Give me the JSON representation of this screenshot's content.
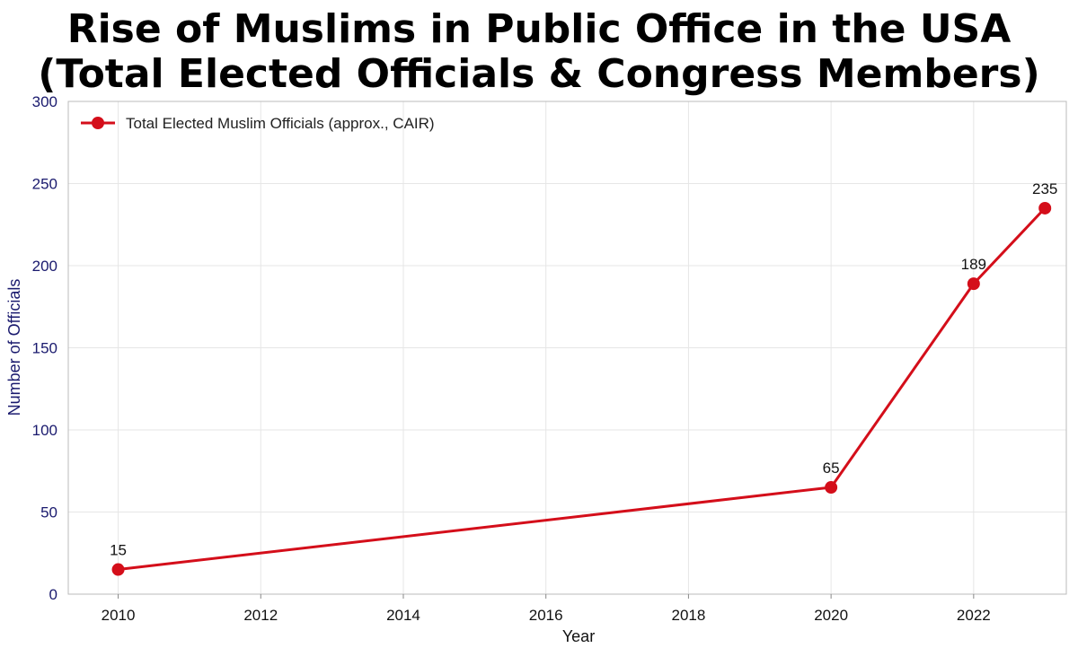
{
  "title_line1": "Rise of Muslims in Public Office in the USA",
  "title_line2": "(Total Elected Officials & Congress Members)",
  "colors": {
    "series": "#d40e1a",
    "axis_text": "#1a1a6e",
    "grid": "#e6e6e6",
    "frame": "#bbbbbb"
  },
  "chart_data": {
    "type": "line",
    "xlabel": "Year",
    "ylabel": "Number of Officials",
    "xlim": [
      2009.3,
      2023.3
    ],
    "ylim": [
      0,
      300
    ],
    "x_ticks": [
      2010,
      2012,
      2014,
      2016,
      2018,
      2020,
      2022
    ],
    "y_ticks": [
      0,
      50,
      100,
      150,
      200,
      250,
      300
    ],
    "grid": true,
    "legend_position": "top-left",
    "series": [
      {
        "name": "Total Elected Muslim Officials (approx., CAIR)",
        "x": [
          2010,
          2020,
          2022,
          2023
        ],
        "values": [
          15,
          65,
          189,
          235
        ],
        "labels": [
          "15",
          "65",
          "189",
          "235"
        ],
        "marker": "circle"
      }
    ]
  }
}
